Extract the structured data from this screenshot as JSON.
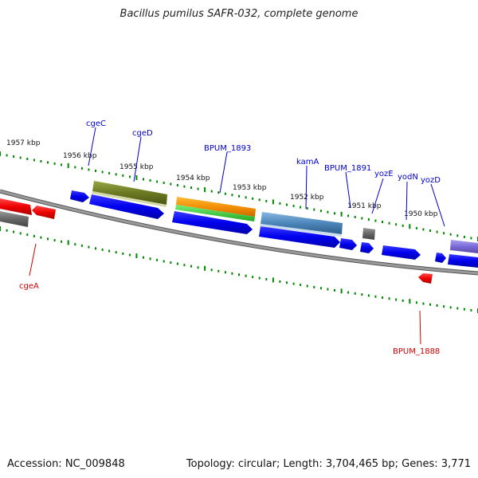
{
  "title": "Bacillus pumilus SAFR-032, complete genome",
  "accession": "Accession: NC_009848",
  "topology": "Topology: circular; Length: 3,704,465 bp; Genes: 3,771",
  "kbp_labels": [
    "1957 kbp",
    "1956 kbp",
    "1955 kbp",
    "1954 kbp",
    "1953 kbp",
    "1952 kbp",
    "1951 kbp",
    "1950 kbp"
  ],
  "gene_labels": {
    "cgeC": "cgeC",
    "cgeD": "cgeD",
    "BPUM_1893": "BPUM_1893",
    "kamA": "kamA",
    "BPUM_1891": "BPUM_1891",
    "yozE": "yozE",
    "yodN": "yodN",
    "yozD": "yozD",
    "cgeA": "cgeA",
    "BPUM_1888": "BPUM_1888"
  },
  "colors": {
    "forward_cds": "#0000ee",
    "reverse_cds": "#ee0000",
    "label_forward": "#0000cc",
    "label_reverse": "#cc0000",
    "tick": "#008800",
    "backbone": "#888888"
  }
}
